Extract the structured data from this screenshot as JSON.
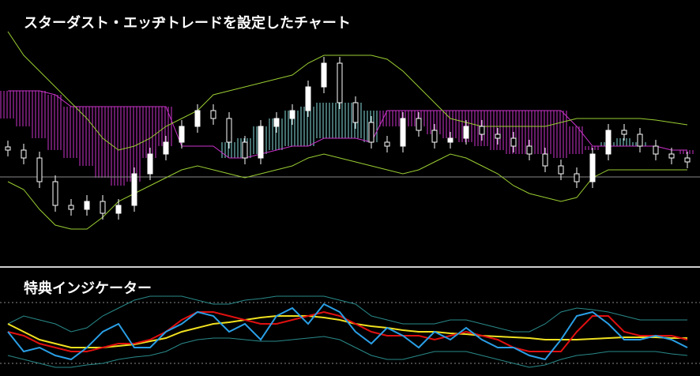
{
  "chart_data": [
    {
      "type": "candlestick",
      "title": "スターダスト・エッヂトレードを設定したチャート",
      "ylim": [
        0,
        336
      ],
      "open": [
        150,
        146,
        136,
        106,
        76,
        71,
        81,
        66,
        76,
        116,
        141,
        156,
        176,
        196,
        186,
        156,
        136,
        176,
        186,
        196,
        226,
        256,
        206,
        181,
        156,
        151,
        186,
        171,
        156,
        161,
        176,
        166,
        161,
        151,
        141,
        126,
        116,
        106,
        141,
        171,
        166,
        151,
        141,
        136
      ],
      "high": [
        158,
        154,
        144,
        114,
        84,
        89,
        89,
        84,
        124,
        149,
        164,
        184,
        204,
        204,
        194,
        164,
        184,
        194,
        204,
        234,
        264,
        264,
        214,
        189,
        164,
        194,
        194,
        179,
        169,
        184,
        184,
        174,
        169,
        159,
        149,
        134,
        124,
        149,
        179,
        179,
        174,
        159,
        149,
        144
      ],
      "low": [
        138,
        128,
        98,
        68,
        63,
        63,
        58,
        58,
        68,
        108,
        133,
        148,
        168,
        178,
        148,
        128,
        128,
        168,
        178,
        188,
        218,
        198,
        173,
        148,
        143,
        143,
        163,
        148,
        148,
        153,
        158,
        153,
        143,
        133,
        118,
        108,
        98,
        98,
        133,
        158,
        143,
        133,
        128,
        123
      ],
      "close": [
        146,
        136,
        106,
        76,
        71,
        81,
        66,
        76,
        116,
        141,
        156,
        176,
        196,
        186,
        156,
        136,
        176,
        186,
        196,
        226,
        256,
        206,
        181,
        156,
        151,
        186,
        171,
        156,
        161,
        176,
        166,
        161,
        151,
        141,
        126,
        116,
        106,
        141,
        171,
        166,
        151,
        141,
        136,
        131
      ],
      "up_color": "#ffffff",
      "down_color": "#000000",
      "wick_color": "#ffffff",
      "upper": [
        296,
        266,
        246,
        226,
        206,
        186,
        161,
        146,
        151,
        161,
        176,
        186,
        196,
        216,
        221,
        226,
        231,
        236,
        241,
        256,
        266,
        266,
        266,
        266,
        261,
        246,
        226,
        206,
        186,
        181,
        176,
        176,
        176,
        176,
        176,
        181,
        186,
        186,
        186,
        186,
        186,
        184,
        181,
        178
      ],
      "lower": [
        106,
        96,
        71,
        51,
        46,
        46,
        61,
        81,
        91,
        101,
        111,
        121,
        126,
        121,
        116,
        111,
        116,
        121,
        126,
        136,
        141,
        136,
        131,
        126,
        121,
        116,
        121,
        131,
        141,
        136,
        126,
        116,
        101,
        91,
        86,
        81,
        86,
        111,
        121,
        121,
        121,
        121,
        121,
        121
      ],
      "band_color": "#9acd32",
      "span_a": [
        221,
        221,
        221,
        216,
        201,
        201,
        201,
        201,
        201,
        201,
        201,
        151,
        151,
        151,
        136,
        136,
        141,
        146,
        151,
        151,
        161,
        161,
        161,
        156,
        196,
        196,
        196,
        196,
        196,
        196,
        196,
        196,
        196,
        196,
        196,
        196,
        176,
        151,
        151,
        151,
        151,
        151,
        146,
        146
      ],
      "span_b": [
        186,
        176,
        161,
        146,
        136,
        126,
        111,
        101,
        106,
        136,
        151,
        151,
        151,
        151,
        156,
        161,
        176,
        186,
        196,
        201,
        206,
        206,
        206,
        196,
        176,
        176,
        176,
        166,
        161,
        156,
        151,
        146,
        141,
        141,
        141,
        136,
        141,
        146,
        156,
        161,
        156,
        151,
        146,
        141
      ],
      "cloud_up_color": "#cc33cc",
      "cloud_down_color": "#88dddd",
      "hline": 112,
      "hline_color": "#888888"
    },
    {
      "type": "line",
      "title": "特典インジケーター",
      "ylim": [
        0,
        136
      ],
      "levels": [
        93,
        16
      ],
      "series": [
        {
          "color": "#2a8a8a",
          "values": [
            66,
            76,
            71,
            66,
            56,
            61,
            76,
            86,
            96,
            101,
            101,
            101,
            96,
            91,
            91,
            96,
            98,
            101,
            101,
            101,
            101,
            96,
            91,
            76,
            71,
            66,
            66,
            66,
            71,
            71,
            66,
            61,
            56,
            56,
            66,
            81,
            86,
            84,
            81,
            76,
            71,
            71,
            71,
            71
          ]
        },
        {
          "color": "#2a8a8a",
          "values": [
            26,
            21,
            16,
            11,
            11,
            14,
            16,
            21,
            24,
            26,
            31,
            41,
            46,
            48,
            48,
            46,
            44,
            44,
            46,
            48,
            50,
            46,
            36,
            26,
            21,
            21,
            26,
            31,
            31,
            31,
            26,
            21,
            16,
            11,
            14,
            21,
            26,
            28,
            31,
            31,
            31,
            31,
            28,
            26
          ]
        },
        {
          "color": "#f0e020",
          "values": [
            66,
            56,
            46,
            41,
            36,
            36,
            36,
            38,
            40,
            44,
            48,
            56,
            61,
            66,
            68,
            71,
            74,
            76,
            76,
            76,
            74,
            71,
            66,
            63,
            61,
            58,
            56,
            56,
            54,
            53,
            51,
            50,
            49,
            48,
            46,
            46,
            46,
            47,
            48,
            49,
            49,
            49,
            48,
            48
          ]
        },
        {
          "color": "#e01010",
          "values": [
            56,
            51,
            41,
            36,
            31,
            31,
            36,
            41,
            41,
            46,
            56,
            71,
            81,
            81,
            76,
            71,
            66,
            66,
            71,
            76,
            81,
            76,
            66,
            56,
            51,
            51,
            51,
            46,
            51,
            56,
            51,
            46,
            36,
            31,
            31,
            31,
            56,
            76,
            76,
            56,
            51,
            51,
            51,
            46
          ]
        },
        {
          "color": "#2a9fe6",
          "values": [
            56,
            31,
            36,
            26,
            21,
            36,
            56,
            66,
            36,
            36,
            56,
            66,
            81,
            76,
            56,
            66,
            46,
            76,
            86,
            66,
            91,
            81,
            56,
            41,
            61,
            51,
            36,
            56,
            46,
            61,
            46,
            36,
            36,
            26,
            21,
            46,
            76,
            81,
            66,
            46,
            46,
            51,
            46,
            36
          ]
        }
      ]
    }
  ]
}
